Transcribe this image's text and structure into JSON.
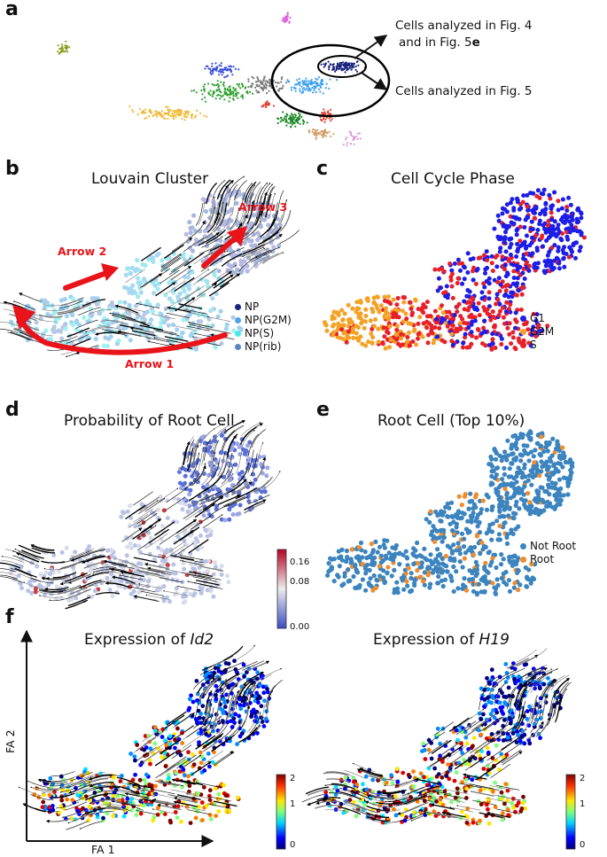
{
  "panels": {
    "a": {
      "label": "a",
      "annotation_fig4_line1": "Cells analyzed in Fig. 4",
      "annotation_fig4_line2_prefix": "and in Fig. 5",
      "annotation_fig4_line2_bold": "e",
      "annotation_fig5": "Cells analyzed in Fig. 5"
    },
    "b": {
      "label": "b",
      "title": "Louvain Cluster",
      "arrows": [
        "Arrow 1",
        "Arrow 2",
        "Arrow 3"
      ],
      "legend": [
        {
          "name": "NP",
          "color": "#1a237e"
        },
        {
          "name": "NP(G2M)",
          "color": "#4fa3e8"
        },
        {
          "name": "NP(S)",
          "color": "#4ce6ef"
        },
        {
          "name": "NP(rib)",
          "color": "#5b86b8"
        }
      ]
    },
    "c": {
      "label": "c",
      "title": "Cell Cycle Phase",
      "legend": [
        {
          "name": "G1",
          "color": "#1d1de8"
        },
        {
          "name": "G2M",
          "color": "#f4a124"
        },
        {
          "name": "S",
          "color": "#e8202a"
        }
      ]
    },
    "d": {
      "label": "d",
      "title": "Probability of Root Cell",
      "colorbar_ticks": [
        "0.16",
        "0.08",
        "0.00"
      ]
    },
    "e": {
      "label": "e",
      "title": "Root Cell (Top 10%)",
      "legend": [
        {
          "name": "Not Root",
          "color": "#3b84bf"
        },
        {
          "name": "Root",
          "color": "#f08c2c"
        }
      ]
    },
    "f": {
      "label": "f",
      "title_left_prefix": "Expression of ",
      "title_left_gene": "Id2",
      "title_right_prefix": "Expression of ",
      "title_right_gene": "H19",
      "colorbar_ticks": [
        "2",
        "1",
        "0"
      ],
      "xlabel": "FA 1",
      "ylabel": "FA 2"
    }
  },
  "colors": {
    "arrow_red": "#e8141a",
    "np_dark": "#1a237e",
    "root_blue": "#3b84bf",
    "root_orange": "#f08c2c"
  }
}
